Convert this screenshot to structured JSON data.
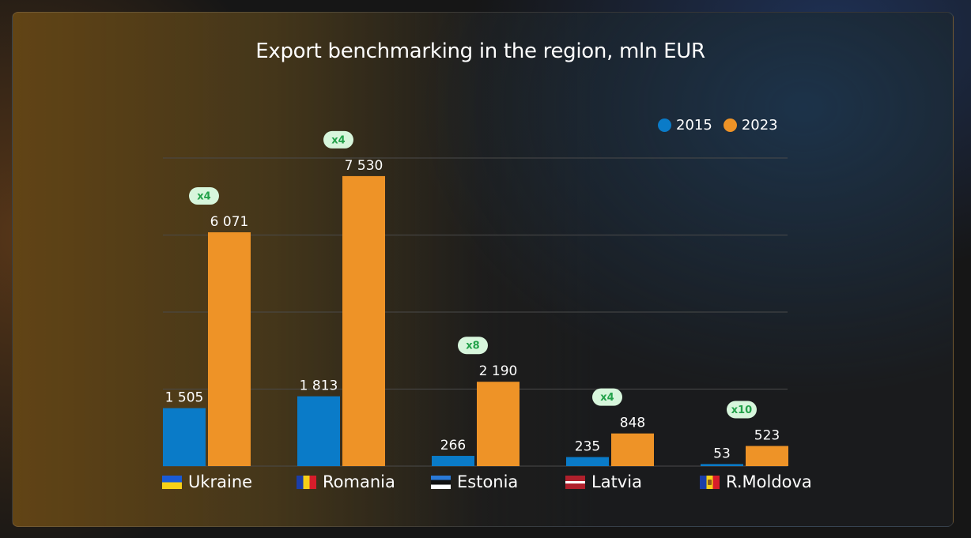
{
  "colors": {
    "series_2015": "#0a7bc8",
    "series_2023": "#ee9327",
    "badge_bg": "#d7f6dc",
    "badge_text": "#23a14a",
    "grid": "#4a4a4a"
  },
  "chart_data": {
    "type": "bar",
    "title": "Export benchmarking in the region, mln EUR",
    "categories": [
      "Ukraine",
      "Romania",
      "Estonia",
      "Latvia",
      "R.Moldova"
    ],
    "flags": [
      "flag-ua",
      "flag-ro",
      "flag-ee",
      "flag-lv",
      "flag-md"
    ],
    "series": [
      {
        "name": "2015",
        "values": [
          1505,
          1813,
          266,
          235,
          53
        ],
        "labels": [
          "1 505",
          "1 813",
          "266",
          "235",
          "53"
        ]
      },
      {
        "name": "2023",
        "values": [
          6071,
          7530,
          2190,
          848,
          523
        ],
        "labels": [
          "6 071",
          "7 530",
          "2 190",
          "848",
          "523"
        ]
      }
    ],
    "growth_badges": [
      "x4",
      "x4",
      "x8",
      "x4",
      "x10"
    ],
    "ylim": [
      0,
      8000
    ],
    "grid": true,
    "legend_position": "top-right",
    "xlabel": "",
    "ylabel": ""
  }
}
